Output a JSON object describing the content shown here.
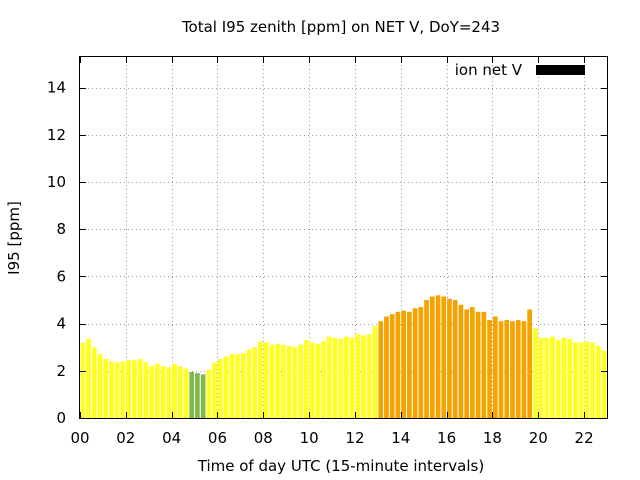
{
  "chart_data": {
    "type": "bar",
    "title": "Total I95 zenith [ppm] on NET V, DoY=243",
    "xlabel": "Time of day UTC (15-minute intervals)",
    "ylabel": "I95 [ppm]",
    "xlim": [
      0,
      23
    ],
    "ylim": [
      0,
      15.3
    ],
    "x_ticks": [
      "00",
      "02",
      "04",
      "06",
      "08",
      "10",
      "12",
      "14",
      "16",
      "18",
      "20",
      "22"
    ],
    "y_ticks": [
      "0",
      "2",
      "4",
      "6",
      "8",
      "10",
      "12",
      "14"
    ],
    "grid": true,
    "legend": {
      "label": "ion net V",
      "color": "#000000",
      "placement": "top-right"
    },
    "bar_interval_hours": 0.25,
    "values": [
      3.2,
      3.35,
      3.0,
      2.7,
      2.5,
      2.4,
      2.35,
      2.4,
      2.45,
      2.45,
      2.5,
      2.35,
      2.2,
      2.3,
      2.2,
      2.15,
      2.3,
      2.2,
      2.1,
      1.95,
      1.9,
      1.85,
      2.05,
      2.35,
      2.5,
      2.6,
      2.7,
      2.7,
      2.75,
      2.9,
      3.0,
      3.25,
      3.2,
      3.1,
      3.15,
      3.1,
      3.05,
      3.0,
      3.1,
      3.3,
      3.2,
      3.15,
      3.25,
      3.45,
      3.4,
      3.35,
      3.45,
      3.4,
      3.55,
      3.5,
      3.55,
      3.9,
      4.1,
      4.3,
      4.4,
      4.5,
      4.55,
      4.5,
      4.65,
      4.7,
      5.0,
      5.15,
      5.2,
      5.15,
      5.05,
      5.0,
      4.8,
      4.6,
      4.7,
      4.5,
      4.5,
      4.15,
      4.3,
      4.1,
      4.15,
      4.1,
      4.15,
      4.1,
      4.6,
      3.8,
      3.4,
      3.4,
      3.45,
      3.3,
      3.4,
      3.35,
      3.2,
      3.2,
      3.25,
      3.2,
      3.05,
      2.85
    ],
    "colors": {
      "green": "#80b84a",
      "yellow": "#ffff22",
      "orange": "#f5a300"
    },
    "color_thresholds": {
      "green_below": 2.0,
      "orange_from": 4.0
    }
  }
}
